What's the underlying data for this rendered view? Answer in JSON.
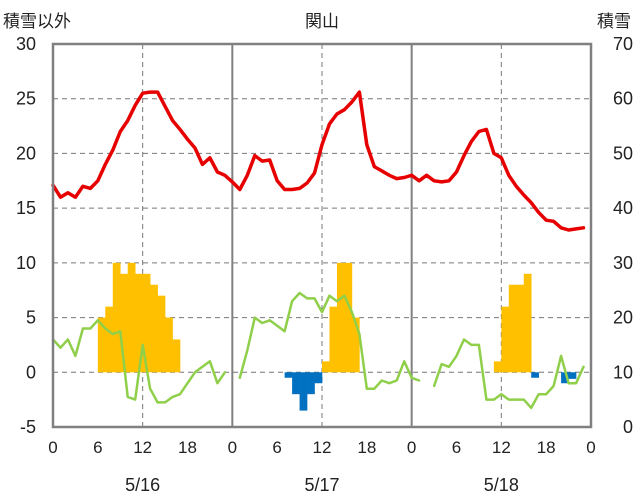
{
  "chart_data": {
    "type": "bar+line",
    "title": "関山",
    "left_axis_label": "積雪以外",
    "right_axis_label": "積雪",
    "ylim_left": [
      -5,
      30
    ],
    "yticks_left": [
      "-5",
      "0",
      "5",
      "10",
      "15",
      "20",
      "25",
      "30"
    ],
    "ylim_right": [
      0,
      70
    ],
    "yticks_right": [
      "0",
      "10",
      "20",
      "30",
      "40",
      "50",
      "60",
      "70"
    ],
    "x_hours_range": [
      0,
      72
    ],
    "x_tick_labels": [
      "0",
      "6",
      "12",
      "18",
      "0",
      "6",
      "12",
      "18",
      "0",
      "6",
      "12",
      "18",
      "0"
    ],
    "day_labels": [
      "5/16",
      "5/17",
      "5/18"
    ],
    "grid": "dashed",
    "colors": {
      "temperature": "#e60000",
      "snow_depth": "#8fcf4a",
      "precip_positive": "#ffc000",
      "precip_negative": "#0070c0",
      "frame": "#808080",
      "grid": "#777777"
    },
    "temperature": {
      "x": [
        0,
        1,
        2,
        3,
        4,
        5,
        6,
        7,
        8,
        9,
        10,
        11,
        12,
        13,
        14,
        15,
        16,
        17,
        18,
        19,
        20,
        21,
        22,
        23,
        24,
        25,
        26,
        27,
        28,
        29,
        30,
        31,
        32,
        33,
        34,
        35,
        36,
        37,
        38,
        39,
        40,
        41,
        42,
        43,
        44,
        45,
        46,
        47,
        48,
        49,
        50,
        51,
        52,
        53,
        54,
        55,
        56,
        57,
        58,
        59,
        60,
        61,
        62,
        63,
        64,
        65,
        66,
        67,
        68,
        69,
        70,
        71
      ],
      "y": [
        17.1,
        16.0,
        16.4,
        16.0,
        17.0,
        16.8,
        17.5,
        19.0,
        20.3,
        22.0,
        23.0,
        24.4,
        25.5,
        25.6,
        25.6,
        24.3,
        23.0,
        22.2,
        21.3,
        20.5,
        19.0,
        19.6,
        18.3,
        18.0,
        17.4,
        16.7,
        18.0,
        19.8,
        19.3,
        19.4,
        17.5,
        16.7,
        16.7,
        16.8,
        17.3,
        18.2,
        20.8,
        22.7,
        23.6,
        24.0,
        24.7,
        25.6,
        20.8,
        18.8,
        18.4,
        18.0,
        17.7,
        17.8,
        18.0,
        17.5,
        18.0,
        17.5,
        17.4,
        17.5,
        18.3,
        19.8,
        21.1,
        22.0,
        22.2,
        20.0,
        19.6,
        18.0,
        17.0,
        16.2,
        15.5,
        14.6,
        13.9,
        13.8,
        13.2,
        13.0,
        13.1,
        13.2
      ]
    },
    "snow_depth": {
      "x": [
        0,
        1,
        2,
        3,
        4,
        5,
        6,
        7,
        8,
        9,
        10,
        11,
        12,
        13,
        14,
        15,
        16,
        17,
        18,
        19,
        20,
        21,
        22,
        23,
        24,
        25,
        26,
        27,
        28,
        29,
        30,
        31,
        32,
        33,
        34,
        35,
        36,
        37,
        38,
        39,
        40,
        41,
        42,
        43,
        44,
        45,
        46,
        47,
        48,
        49,
        50,
        51,
        52,
        53,
        54,
        55,
        56,
        57,
        58,
        59,
        60,
        61,
        62,
        63,
        64,
        65,
        66,
        67,
        68,
        69,
        70,
        71
      ],
      "y": [
        16,
        14.5,
        16,
        13,
        18,
        18,
        19.5,
        18,
        17,
        17.5,
        5.5,
        5,
        15,
        7,
        4.5,
        4.5,
        5.5,
        6,
        8,
        10,
        11,
        12,
        8,
        10,
        null,
        9,
        14,
        20,
        19,
        19.5,
        18.5,
        17.5,
        23,
        24.5,
        23.5,
        23.5,
        21,
        24,
        23,
        24,
        21,
        17,
        7,
        7,
        8.5,
        8,
        8.5,
        12,
        9,
        8.5,
        null,
        7.5,
        11.5,
        11,
        13,
        16,
        15,
        15,
        5,
        5,
        6,
        5,
        5,
        5,
        3.5,
        6,
        6,
        7.5,
        13,
        8,
        8,
        11
      ]
    },
    "precipitation": {
      "x": [
        6,
        7,
        8,
        9,
        10,
        11,
        12,
        13,
        14,
        15,
        16,
        31,
        32,
        33,
        34,
        35,
        36,
        37,
        38,
        39,
        40,
        59,
        60,
        61,
        62,
        63,
        64,
        68,
        69
      ],
      "values": [
        5,
        6,
        10,
        9,
        10,
        9,
        9,
        8,
        7,
        5,
        3,
        -0.5,
        -2,
        -3.5,
        -2,
        -1,
        1,
        6,
        10,
        10,
        5,
        1,
        6,
        8,
        8,
        9,
        -0.5,
        -1,
        -0.6
      ]
    }
  }
}
